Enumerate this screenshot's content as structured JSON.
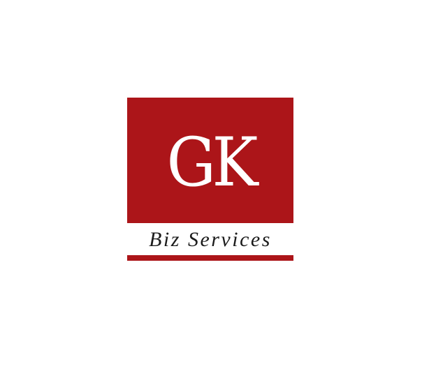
{
  "logo": {
    "monogram": "GK",
    "tagline": "Biz Services",
    "brand_color": "#ac1519",
    "text_color": "#1b1b1b"
  }
}
